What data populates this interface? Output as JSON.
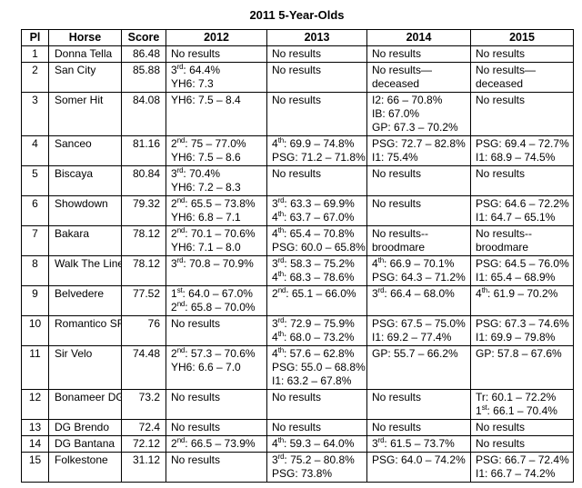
{
  "title": "2011 5-Year-Olds",
  "table": {
    "headers": [
      "Pl",
      "Horse",
      "Score",
      "2012",
      "2013",
      "2014",
      "2015"
    ],
    "rows": [
      {
        "pl": "1",
        "horse": "Donna Tella",
        "score": "86.48",
        "y2012": [
          "No results"
        ],
        "y2013": [
          "No results"
        ],
        "y2014": [
          "No results"
        ],
        "y2015": [
          "No results"
        ]
      },
      {
        "pl": "2",
        "horse": "San City",
        "score": "85.88",
        "y2012": [
          "3rd: 64.4%",
          "YH6: 7.3"
        ],
        "y2013": [
          "No results"
        ],
        "y2014": [
          "No results—",
          "deceased"
        ],
        "y2015": [
          "No results—",
          "deceased"
        ]
      },
      {
        "pl": "3",
        "horse": "Somer Hit",
        "score": "84.08",
        "y2012": [
          "YH6: 7.5 – 8.4"
        ],
        "y2013": [
          "No results"
        ],
        "y2014": [
          "I2: 66 – 70.8%",
          "IB: 67.0%",
          "GP: 67.3 – 70.2%"
        ],
        "y2015": [
          "No results"
        ]
      },
      {
        "pl": "4",
        "horse": "Sanceo",
        "score": "81.16",
        "y2012": [
          "2nd: 75 – 77.0%",
          "YH6: 7.5 – 8.6"
        ],
        "y2013": [
          "4th: 69.9 – 74.8%",
          "PSG: 71.2 – 71.8%"
        ],
        "y2014": [
          "PSG: 72.7 – 82.8%",
          "I1: 75.4%"
        ],
        "y2015": [
          "PSG: 69.4 – 72.7%",
          "I1: 68.9 – 74.5%"
        ]
      },
      {
        "pl": "5",
        "horse": "Biscaya",
        "score": "80.84",
        "y2012": [
          "3rd: 70.4%",
          "YH6: 7.2 – 8.3"
        ],
        "y2013": [
          "No results"
        ],
        "y2014": [
          "No results"
        ],
        "y2015": [
          "No results"
        ]
      },
      {
        "pl": "6",
        "horse": "Showdown",
        "score": "79.32",
        "y2012": [
          "2nd: 65.5 – 73.8%",
          "YH6: 6.8 – 7.1"
        ],
        "y2013": [
          "3rd: 63.3 – 69.9%",
          "4th: 63.7 – 67.0%"
        ],
        "y2014": [
          "No results"
        ],
        "y2015": [
          "PSG: 64.6 – 72.2%",
          "I1: 64.7 – 65.1%"
        ]
      },
      {
        "pl": "7",
        "horse": "Bakara",
        "score": "78.12",
        "y2012": [
          "2nd: 70.1 – 70.6%",
          "YH6: 7.1 – 8.0"
        ],
        "y2013": [
          "4th: 65.4 – 70.8%",
          "PSG: 60.0 – 65.8%"
        ],
        "y2014": [
          "No results--",
          "broodmare"
        ],
        "y2015": [
          "No results--",
          "broodmare"
        ]
      },
      {
        "pl": "8",
        "horse": "Walk The Line",
        "score": "78.12",
        "y2012": [
          "3rd: 70.8 – 70.9%"
        ],
        "y2013": [
          "3rd: 58.3 – 75.2%",
          "4th: 68.3 – 78.6%"
        ],
        "y2014": [
          "4th: 66.9 – 70.1%",
          "PSG: 64.3 – 71.2%"
        ],
        "y2015": [
          "PSG: 64.5 – 76.0%",
          "I1: 65.4 – 68.9%"
        ]
      },
      {
        "pl": "9",
        "horse": "Belvedere",
        "score": "77.52",
        "y2012": [
          "1st: 64.0 – 67.0%",
          "2nd: 65.8 – 70.0%"
        ],
        "y2013": [
          "2nd: 65.1 – 66.0%"
        ],
        "y2014": [
          "3rd: 66.4 – 68.0%"
        ],
        "y2015": [
          "4th: 61.9 – 70.2%"
        ]
      },
      {
        "pl": "10",
        "horse": "Romantico SF",
        "score": "76",
        "y2012": [
          "No results"
        ],
        "y2013": [
          "3rd: 72.9 – 75.9%",
          "4th: 68.0 – 73.2%"
        ],
        "y2014": [
          "PSG: 67.5 – 75.0%",
          "I1: 69.2 – 77.4%"
        ],
        "y2015": [
          "PSG: 67.3 – 74.6%",
          "I1: 69.9 – 79.8%"
        ]
      },
      {
        "pl": "11",
        "horse": "Sir Velo",
        "score": "74.48",
        "y2012": [
          "2nd: 57.3 – 70.6%",
          "YH6: 6.6 – 7.0"
        ],
        "y2013": [
          "4th: 57.6 – 62.8%",
          "PSG: 55.0 – 68.8%",
          "I1: 63.2 – 67.8%"
        ],
        "y2014": [
          "GP: 55.7 – 66.2%"
        ],
        "y2015": [
          "GP: 57.8 – 67.6%"
        ]
      },
      {
        "pl": "12",
        "horse": "Bonameer DG",
        "score": "73.2",
        "y2012": [
          "No results"
        ],
        "y2013": [
          "No results"
        ],
        "y2014": [
          "No results"
        ],
        "y2015": [
          "Tr: 60.1 – 72.2%",
          "1st: 66.1 – 70.4%"
        ]
      },
      {
        "pl": "13",
        "horse": "DG Brendo",
        "score": "72.4",
        "y2012": [
          "No results"
        ],
        "y2013": [
          "No results"
        ],
        "y2014": [
          "No results"
        ],
        "y2015": [
          "No results"
        ]
      },
      {
        "pl": "14",
        "horse": "DG Bantana",
        "score": "72.12",
        "y2012": [
          "2nd: 66.5 – 73.9%"
        ],
        "y2013": [
          "4th: 59.3 – 64.0%"
        ],
        "y2014": [
          "3rd: 61.5 – 73.7%"
        ],
        "y2015": [
          "No results"
        ]
      },
      {
        "pl": "15",
        "horse": "Folkestone",
        "score": "31.12",
        "y2012": [
          "No results"
        ],
        "y2013": [
          "3rd: 75.2 – 80.8%",
          "PSG: 73.8%"
        ],
        "y2014": [
          "PSG: 64.0 – 74.2%"
        ],
        "y2015": [
          "PSG: 66.7 – 72.4%",
          "I1: 66.7 – 74.2%"
        ]
      }
    ]
  }
}
